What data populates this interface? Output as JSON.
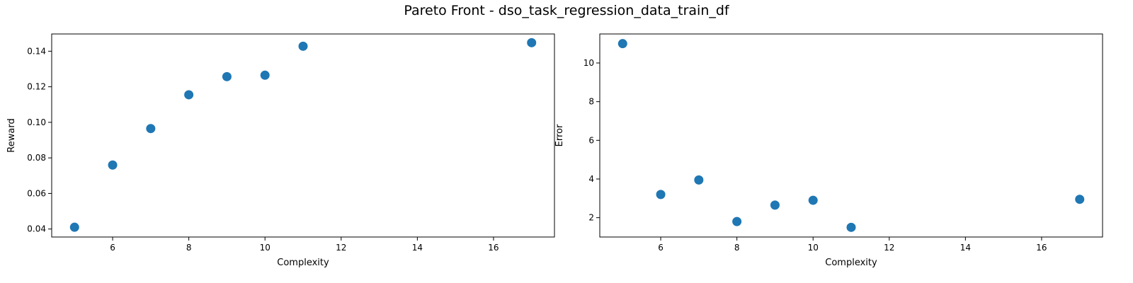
{
  "title": "Pareto Front - dso_task_regression_data_train_df",
  "chart_data": [
    {
      "type": "scatter",
      "xlabel": "Complexity",
      "ylabel": "Reward",
      "xlim": [
        4.4,
        17.6
      ],
      "ylim": [
        0.0355,
        0.1497
      ],
      "xticks": [
        6,
        8,
        10,
        12,
        14,
        16
      ],
      "xtick_labels": [
        "6",
        "8",
        "10",
        "12",
        "14",
        "16"
      ],
      "yticks": [
        0.04,
        0.06,
        0.08,
        0.1,
        0.12,
        0.14
      ],
      "ytick_labels": [
        "0.04",
        "0.06",
        "0.08",
        "0.10",
        "0.12",
        "0.14"
      ],
      "grid": false,
      "marker_color": "#1f77b4",
      "x": [
        5,
        6,
        7,
        8,
        9,
        10,
        11,
        17
      ],
      "y": [
        0.041,
        0.076,
        0.0965,
        0.1155,
        0.1257,
        0.1265,
        0.1428,
        0.1448
      ]
    },
    {
      "type": "scatter",
      "xlabel": "Complexity",
      "ylabel": "Error",
      "xlim": [
        4.4,
        17.6
      ],
      "ylim": [
        1.0,
        11.5
      ],
      "xticks": [
        6,
        8,
        10,
        12,
        14,
        16
      ],
      "xtick_labels": [
        "6",
        "8",
        "10",
        "12",
        "14",
        "16"
      ],
      "yticks": [
        2,
        4,
        6,
        8,
        10
      ],
      "ytick_labels": [
        "2",
        "4",
        "6",
        "8",
        "10"
      ],
      "grid": false,
      "marker_color": "#1f77b4",
      "x": [
        5,
        6,
        7,
        8,
        9,
        10,
        11,
        17
      ],
      "y": [
        11.0,
        3.2,
        3.95,
        1.8,
        2.65,
        2.9,
        1.5,
        2.95
      ]
    }
  ]
}
